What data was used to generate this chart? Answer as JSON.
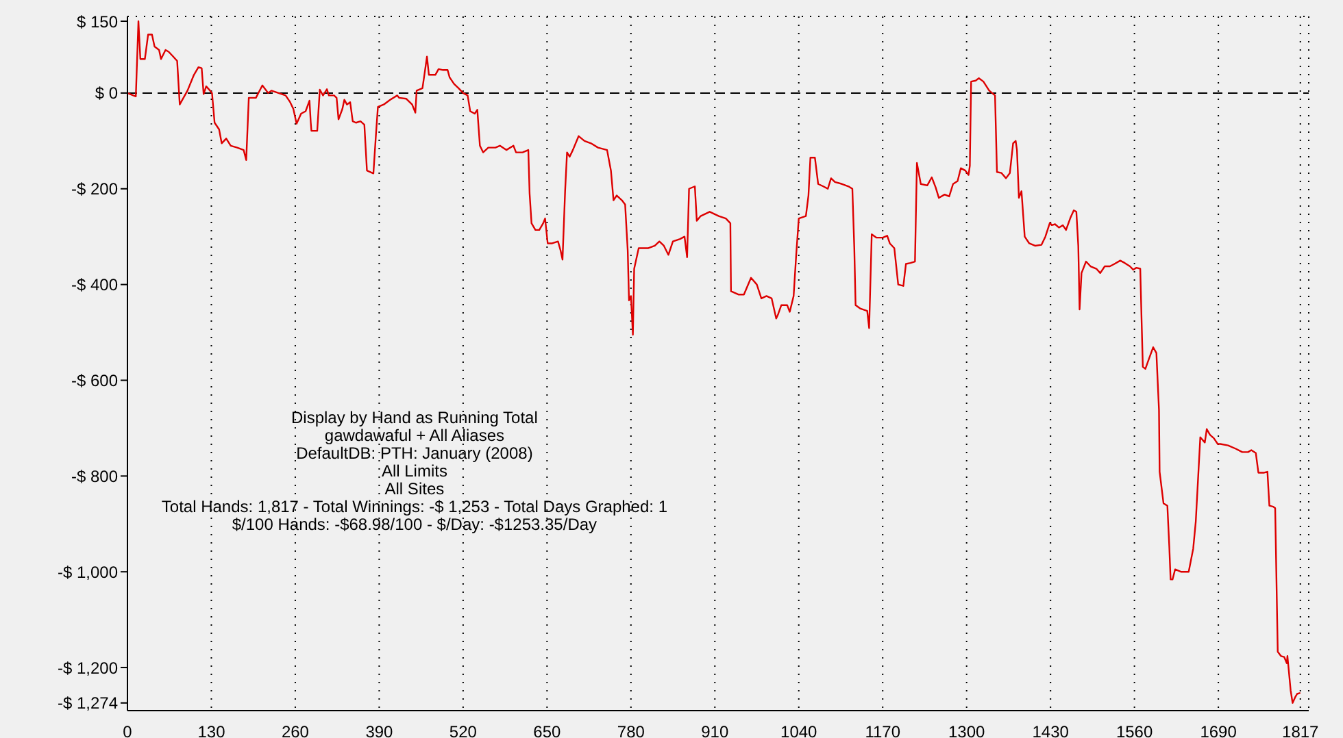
{
  "chart_data": {
    "type": "line",
    "x": [
      0,
      13,
      17,
      20,
      27,
      32,
      38,
      42,
      49,
      52,
      59,
      64,
      71,
      77,
      81,
      93,
      103,
      110,
      115,
      118,
      122,
      128,
      131,
      135,
      142,
      146,
      153,
      160,
      170,
      180,
      184,
      188,
      199,
      209,
      218,
      223,
      234,
      245,
      252,
      257,
      262,
      269,
      276,
      282,
      284,
      285,
      294,
      298,
      303,
      309,
      312,
      320,
      324,
      327,
      333,
      336,
      340,
      345,
      349,
      354,
      361,
      367,
      371,
      381,
      385,
      388,
      397,
      407,
      418,
      421,
      432,
      441,
      446,
      448,
      457,
      460,
      464,
      467,
      477,
      482,
      489,
      496,
      499,
      506,
      513,
      520,
      527,
      531,
      538,
      542,
      546,
      551,
      559,
      570,
      577,
      587,
      598,
      602,
      612,
      621,
      623,
      626,
      632,
      638,
      644,
      647,
      651,
      658,
      667,
      671,
      674,
      678,
      681,
      685,
      690,
      699,
      708,
      718,
      729,
      743,
      749,
      753,
      758,
      766,
      771,
      775,
      777,
      780,
      783,
      785,
      792,
      807,
      817,
      824,
      831,
      838,
      845,
      856,
      863,
      867,
      870,
      879,
      882,
      888,
      902,
      916,
      927,
      934,
      935,
      947,
      955,
      966,
      975,
      982,
      990,
      998,
      1005,
      1008,
      1013,
      1022,
      1026,
      1032,
      1036,
      1040,
      1051,
      1055,
      1058,
      1065,
      1070,
      1078,
      1085,
      1090,
      1096,
      1107,
      1117,
      1123,
      1126,
      1128,
      1135,
      1146,
      1149,
      1153,
      1160,
      1170,
      1177,
      1181,
      1188,
      1194,
      1202,
      1206,
      1213,
      1220,
      1223,
      1229,
      1239,
      1246,
      1252,
      1257,
      1266,
      1273,
      1279,
      1286,
      1291,
      1298,
      1303,
      1305,
      1307,
      1314,
      1319,
      1326,
      1335,
      1344,
      1347,
      1354,
      1361,
      1367,
      1372,
      1376,
      1378,
      1381,
      1385,
      1390,
      1397,
      1406,
      1416,
      1422,
      1429,
      1432,
      1437,
      1443,
      1449,
      1454,
      1461,
      1466,
      1470,
      1473,
      1475,
      1478,
      1485,
      1492,
      1501,
      1507,
      1514,
      1522,
      1529,
      1538,
      1545,
      1553,
      1558,
      1563,
      1569,
      1571,
      1573,
      1577,
      1582,
      1589,
      1594,
      1598,
      1599,
      1605,
      1611,
      1614,
      1616,
      1619,
      1623,
      1632,
      1644,
      1651,
      1655,
      1662,
      1669,
      1672,
      1677,
      1683,
      1689,
      1693,
      1705,
      1717,
      1727,
      1736,
      1741,
      1748,
      1752,
      1761,
      1766,
      1769,
      1775,
      1778,
      1782,
      1787,
      1792,
      1796,
      1797,
      1802,
      1805,
      1809,
      1812,
      1817
    ],
    "series": [
      {
        "color": "#dd0000",
        "values": [
          0,
          -7,
          150,
          71,
          71,
          122,
          122,
          97,
          90,
          71,
          90,
          86,
          76,
          67,
          -24,
          5,
          38,
          54,
          52,
          -2,
          14,
          5,
          0,
          -62,
          -76,
          -105,
          -95,
          -110,
          -114,
          -119,
          -140,
          -10,
          -10,
          16,
          0,
          5,
          0,
          -5,
          -19,
          -33,
          -64,
          -43,
          -38,
          -16,
          -62,
          -79,
          -79,
          7,
          -5,
          8,
          -5,
          -5,
          -10,
          -55,
          -33,
          -14,
          -24,
          -19,
          -59,
          -62,
          -59,
          -66,
          -162,
          -168,
          -86,
          -29,
          -24,
          -14,
          -5,
          -10,
          -12,
          -24,
          -41,
          5,
          10,
          38,
          76,
          38,
          38,
          50,
          48,
          48,
          33,
          19,
          10,
          0,
          -5,
          -38,
          -43,
          -35,
          -110,
          -124,
          -114,
          -114,
          -110,
          -119,
          -110,
          -124,
          -124,
          -119,
          -210,
          -272,
          -286,
          -286,
          -272,
          -262,
          -314,
          -314,
          -310,
          -329,
          -348,
          -205,
          -124,
          -133,
          -119,
          -90,
          -100,
          -105,
          -114,
          -119,
          -162,
          -224,
          -214,
          -224,
          -233,
          -329,
          -433,
          -424,
          -505,
          -367,
          -324,
          -324,
          -319,
          -310,
          -319,
          -338,
          -310,
          -305,
          -300,
          -343,
          -200,
          -195,
          -267,
          -257,
          -248,
          -257,
          -262,
          -272,
          -414,
          -421,
          -421,
          -386,
          -400,
          -429,
          -424,
          -429,
          -471,
          -462,
          -443,
          -443,
          -457,
          -424,
          -338,
          -262,
          -257,
          -214,
          -135,
          -135,
          -190,
          -195,
          -200,
          -178,
          -186,
          -190,
          -195,
          -200,
          -324,
          -443,
          -450,
          -455,
          -491,
          -295,
          -302,
          -302,
          -298,
          -314,
          -324,
          -400,
          -403,
          -357,
          -355,
          -352,
          -146,
          -190,
          -193,
          -176,
          -197,
          -219,
          -212,
          -216,
          -190,
          -184,
          -157,
          -162,
          -171,
          -152,
          24,
          26,
          31,
          24,
          5,
          -5,
          -165,
          -167,
          -178,
          -167,
          -105,
          -100,
          -119,
          -219,
          -205,
          -300,
          -314,
          -319,
          -317,
          -300,
          -271,
          -276,
          -274,
          -281,
          -276,
          -286,
          -260,
          -245,
          -248,
          -319,
          -452,
          -376,
          -352,
          -362,
          -367,
          -376,
          -362,
          -362,
          -357,
          -350,
          -355,
          -362,
          -369,
          -365,
          -367,
          -472,
          -572,
          -576,
          -557,
          -531,
          -543,
          -662,
          -791,
          -857,
          -862,
          -948,
          -1016,
          -1016,
          -995,
          -1000,
          -1000,
          -952,
          -895,
          -719,
          -730,
          -702,
          -714,
          -721,
          -733,
          -733,
          -736,
          -743,
          -750,
          -750,
          -746,
          -752,
          -793,
          -793,
          -791,
          -862,
          -864,
          -867,
          -1167,
          -1176,
          -1178,
          -1191,
          -1176,
          -1248,
          -1274,
          -1262,
          -1255,
          -1253
        ]
      }
    ],
    "xlim": [
      0,
      1830
    ],
    "xticks": [
      0,
      130,
      260,
      390,
      520,
      650,
      780,
      910,
      1040,
      1170,
      1300,
      1430,
      1560,
      1690,
      1817
    ],
    "ylim": [
      -1290,
      160
    ],
    "yticks": [
      {
        "value": 150,
        "label": "$ 150"
      },
      {
        "value": 0,
        "label": "$ 0"
      },
      {
        "value": -200,
        "label": "-$ 200"
      },
      {
        "value": -400,
        "label": "-$ 400"
      },
      {
        "value": -600,
        "label": "-$ 600"
      },
      {
        "value": -800,
        "label": "-$ 800"
      },
      {
        "value": -1000,
        "label": "-$ 1,000"
      },
      {
        "value": -1200,
        "label": "-$ 1,200"
      },
      {
        "value": -1274,
        "label": "-$ 1,274"
      }
    ],
    "grid": true,
    "line_style": "solid",
    "ref_lines": [
      {
        "axis": "y",
        "value": 0,
        "color": "#000000",
        "line_style": "dashed"
      }
    ],
    "annotations": [
      "Display by Hand as Running Total",
      "gawdawaful + All Aliases",
      "DefaultDB: PTH: January (2008)",
      "All Limits",
      "All Sites",
      "Total Hands: 1,817 - Total Winnings: -$ 1,253 - Total Days Graphed: 1",
      "$/100 Hands: -$68.98/100 - $/Day: -$1253.35/Day"
    ]
  }
}
